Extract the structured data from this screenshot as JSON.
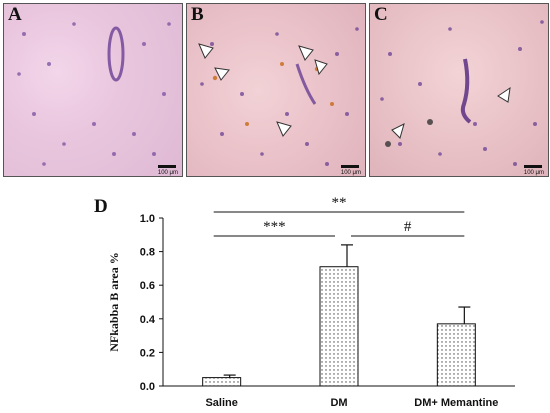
{
  "panels": [
    {
      "label": "A",
      "scale": "100 μm"
    },
    {
      "label": "B",
      "scale": "100 μm"
    },
    {
      "label": "C",
      "scale": "100 μm"
    }
  ],
  "figure_label": "D",
  "chart_data": {
    "type": "bar",
    "categories": [
      "Saline",
      "DM",
      "DM+ Memantine"
    ],
    "values": [
      0.05,
      0.71,
      0.37
    ],
    "errors": [
      0.015,
      0.13,
      0.1
    ],
    "ylabel": "NFkabba B area %",
    "ylim": [
      0,
      1.0
    ],
    "yticks": [
      0.0,
      0.2,
      0.4,
      0.6,
      0.8,
      1.0
    ],
    "bar_pattern": "dotted",
    "significance": [
      {
        "text": "**",
        "from": "Saline",
        "to": "DM+ Memantine"
      },
      {
        "text": "***",
        "from": "Saline",
        "to": "DM"
      },
      {
        "text": "#",
        "from": "DM",
        "to": "DM+ Memantine"
      }
    ]
  }
}
